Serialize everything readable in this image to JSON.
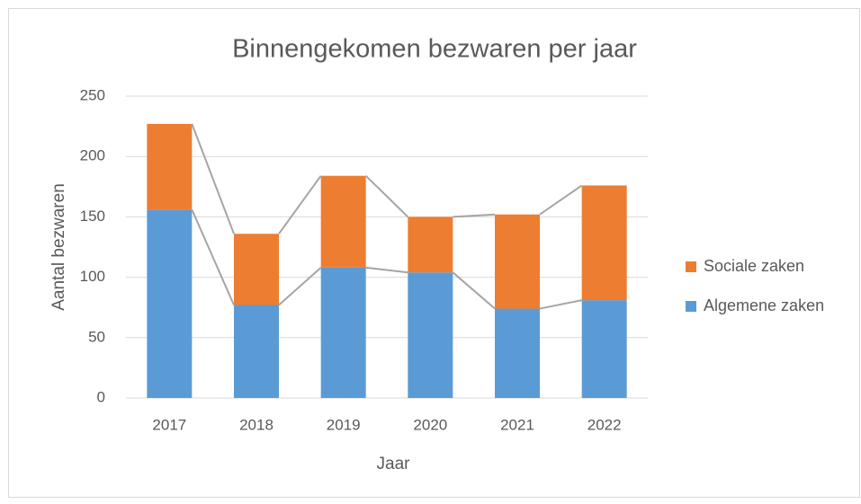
{
  "chart_data": {
    "type": "stacked_bar",
    "title": "Binnengekomen bezwaren  per jaar",
    "x_label": "Jaar",
    "y_label": "Aantal bezwaren",
    "categories": [
      "2017",
      "2018",
      "2019",
      "2020",
      "2021",
      "2022"
    ],
    "series": [
      {
        "name": "Algemene zaken",
        "color": "#5b9bd5",
        "values": [
          156,
          77,
          108,
          104,
          74,
          81
        ]
      },
      {
        "name": "Sociale zaken",
        "color": "#ed7d31",
        "values": [
          71,
          59,
          76,
          46,
          78,
          95
        ]
      }
    ],
    "ylim": [
      0,
      250
    ],
    "yticks": [
      0,
      50,
      100,
      150,
      200,
      250
    ],
    "grid": true,
    "legend": "right",
    "series_lines": true
  }
}
